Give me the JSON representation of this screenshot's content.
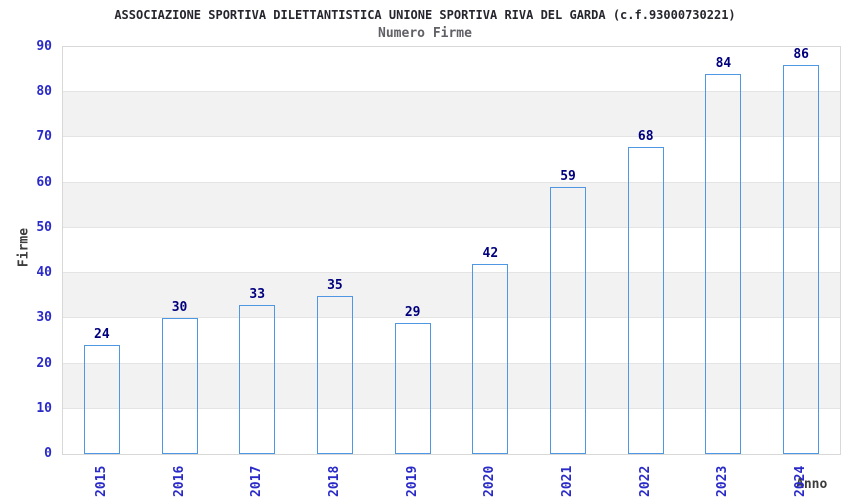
{
  "chart_data": {
    "type": "bar",
    "title": "ASSOCIAZIONE SPORTIVA DILETTANTISTICA UNIONE SPORTIVA RIVA DEL GARDA (c.f.93000730221)",
    "subtitle": "Numero Firme",
    "xlabel": "Anno",
    "ylabel": "Firme",
    "categories": [
      "2015",
      "2016",
      "2017",
      "2018",
      "2019",
      "2020",
      "2021",
      "2022",
      "2023",
      "2024"
    ],
    "values": [
      24,
      30,
      33,
      35,
      29,
      42,
      59,
      68,
      84,
      86
    ],
    "ylim": [
      0,
      90
    ],
    "ytick_step": 10,
    "grid": "alternating-horizontal-bands",
    "legend": "none",
    "x_tick_rotation_deg": -90,
    "colors": {
      "tick_label": "#2a2ac8",
      "value_label": "#00007d",
      "title": "#26262e",
      "subtitle": "#606066",
      "axis_title": "#3c3c3c",
      "band_light": "#ffffff",
      "band_dark": "#f2f2f2",
      "plot_border": "#d8d8d8",
      "bar_border": "#4f97e3",
      "bar_edge": "#131871",
      "bar_highlight": "#abb5e0"
    }
  }
}
